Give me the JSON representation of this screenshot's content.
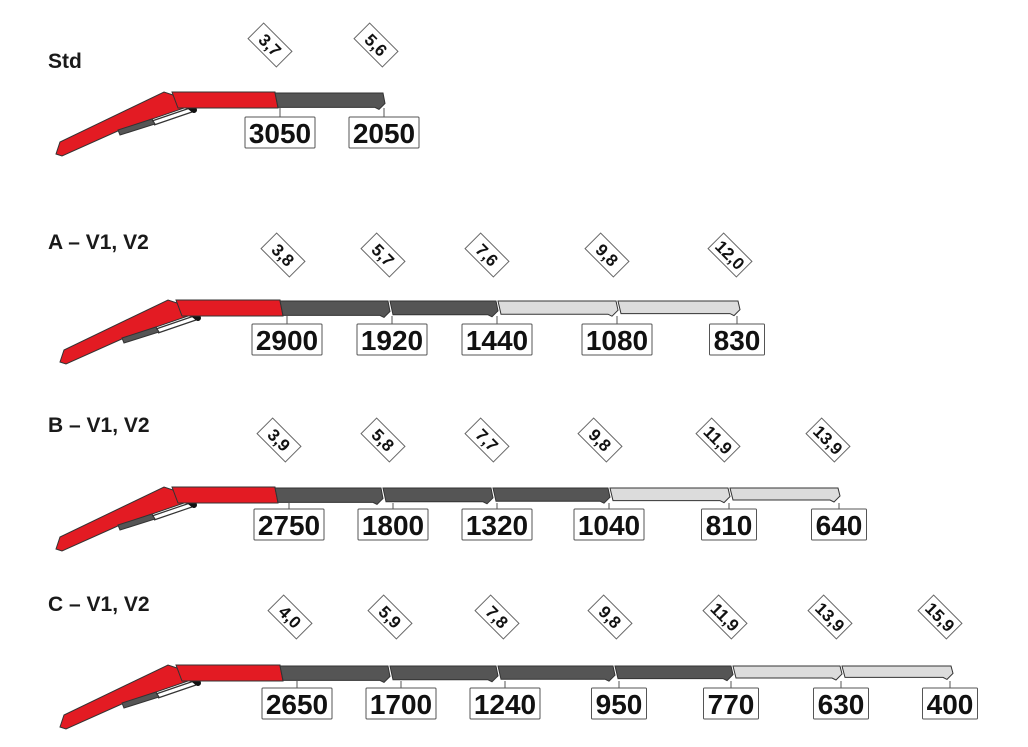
{
  "colors": {
    "base_boom": "#e31b23",
    "extension_dark": "#555555",
    "extension_light": "#dcdcdc",
    "cylinder": "#555555",
    "outline": "#333333"
  },
  "configurations": [
    {
      "label": "Std",
      "reach_m": [
        "3,7",
        "5,6"
      ],
      "loads_kg": [
        "3050",
        "2050"
      ],
      "extensions": [
        "dark"
      ]
    },
    {
      "label": "A – V1, V2",
      "reach_m": [
        "3,8",
        "5,7",
        "7,6",
        "9,8",
        "12,0"
      ],
      "loads_kg": [
        "2900",
        "1920",
        "1440",
        "1080",
        "830"
      ],
      "extensions": [
        "dark",
        "dark",
        "light",
        "light"
      ]
    },
    {
      "label": "B – V1, V2",
      "reach_m": [
        "3,9",
        "5,8",
        "7,7",
        "9,8",
        "11,9",
        "13,9"
      ],
      "loads_kg": [
        "2750",
        "1800",
        "1320",
        "1040",
        "810",
        "640"
      ],
      "extensions": [
        "dark",
        "dark",
        "dark",
        "light",
        "light"
      ]
    },
    {
      "label": "C – V1, V2",
      "reach_m": [
        "4,0",
        "5,9",
        "7,8",
        "9,8",
        "11,9",
        "13,9",
        "15,9"
      ],
      "loads_kg": [
        "2650",
        "1700",
        "1240",
        "950",
        "770",
        "630",
        "400"
      ],
      "extensions": [
        "dark",
        "dark",
        "dark",
        "dark",
        "light",
        "light"
      ]
    }
  ]
}
